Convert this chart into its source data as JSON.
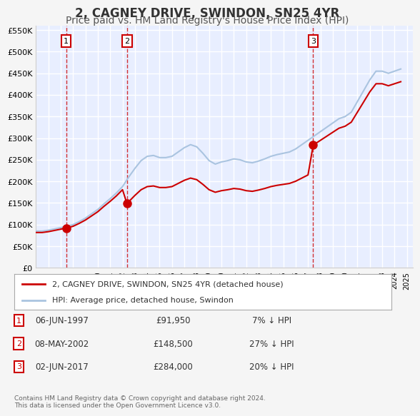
{
  "title": "2, CAGNEY DRIVE, SWINDON, SN25 4YR",
  "subtitle": "Price paid vs. HM Land Registry's House Price Index (HPI)",
  "xlabel": "",
  "ylabel": "",
  "ylim": [
    0,
    560000
  ],
  "yticks": [
    0,
    50000,
    100000,
    150000,
    200000,
    250000,
    300000,
    350000,
    400000,
    450000,
    500000,
    550000
  ],
  "ytick_labels": [
    "£0",
    "£50K",
    "£100K",
    "£150K",
    "£200K",
    "£250K",
    "£300K",
    "£350K",
    "£400K",
    "£450K",
    "£500K",
    "£550K"
  ],
  "xlim_start": 1995.0,
  "xlim_end": 2025.5,
  "xticks": [
    1995,
    1996,
    1997,
    1998,
    1999,
    2000,
    2001,
    2002,
    2003,
    2004,
    2005,
    2006,
    2007,
    2008,
    2009,
    2010,
    2011,
    2012,
    2013,
    2014,
    2015,
    2016,
    2017,
    2018,
    2019,
    2020,
    2021,
    2022,
    2023,
    2024,
    2025
  ],
  "background_color": "#f0f4ff",
  "plot_bg_color": "#e8eeff",
  "grid_color": "#ffffff",
  "hpi_color": "#aac4e0",
  "price_color": "#cc0000",
  "sale_dot_color": "#cc0000",
  "vline_color": "#cc0000",
  "sale_points": [
    {
      "year": 1997.44,
      "price": 91950,
      "label": "1"
    },
    {
      "year": 2002.36,
      "price": 148500,
      "label": "2"
    },
    {
      "year": 2017.42,
      "price": 284000,
      "label": "3"
    }
  ],
  "legend_entries": [
    {
      "label": "2, CAGNEY DRIVE, SWINDON, SN25 4YR (detached house)",
      "color": "#cc0000"
    },
    {
      "label": "HPI: Average price, detached house, Swindon",
      "color": "#aac4e0"
    }
  ],
  "table_rows": [
    {
      "num": "1",
      "date": "06-JUN-1997",
      "price": "£91,950",
      "hpi": "7% ↓ HPI"
    },
    {
      "num": "2",
      "date": "08-MAY-2002",
      "price": "£148,500",
      "hpi": "27% ↓ HPI"
    },
    {
      "num": "3",
      "date": "02-JUN-2017",
      "price": "£284,000",
      "hpi": "20% ↓ HPI"
    }
  ],
  "footer": "Contains HM Land Registry data © Crown copyright and database right 2024.\nThis data is licensed under the Open Government Licence v3.0.",
  "title_fontsize": 12,
  "subtitle_fontsize": 10
}
